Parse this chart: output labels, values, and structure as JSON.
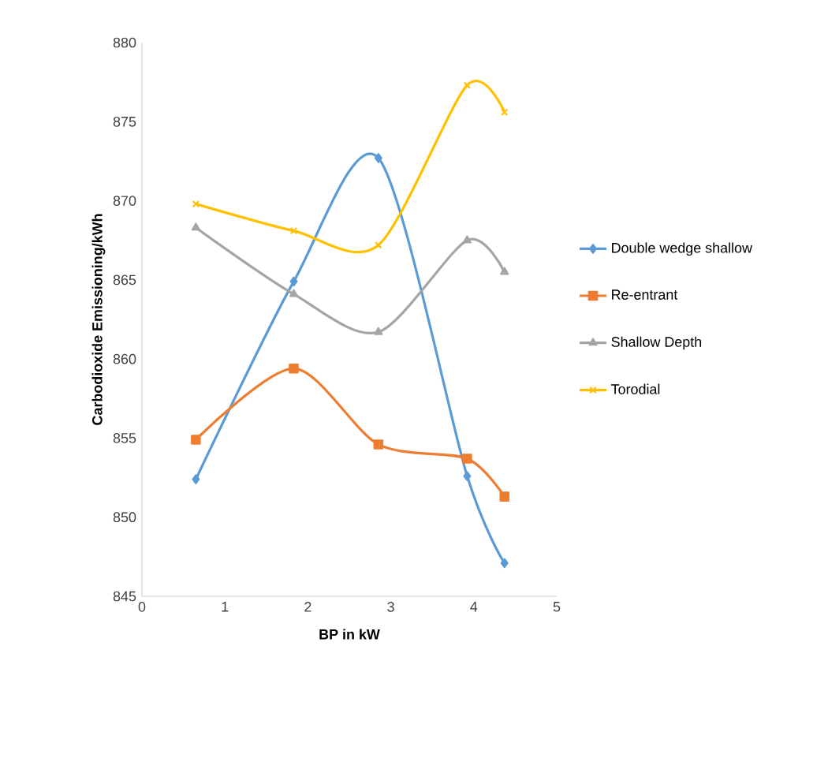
{
  "chart_data": {
    "type": "line",
    "xlabel": "BP in kW",
    "ylabel": "Carbodioxide Emissioning/kWh",
    "xlim": [
      0,
      5
    ],
    "xticks": [
      0,
      1,
      2,
      3,
      4,
      5
    ],
    "ylim": [
      845,
      880
    ],
    "yticks": [
      845,
      850,
      855,
      860,
      865,
      870,
      875,
      880
    ],
    "grid": false,
    "legend": "right",
    "line_style": "solid",
    "series": [
      {
        "name": "Double wedge shallow",
        "color": "#5b9bd5",
        "marker": "diamond",
        "x": [
          0.65,
          1.83,
          2.85,
          3.92,
          4.37
        ],
        "values": [
          852.4,
          864.9,
          872.7,
          852.6,
          847.1
        ]
      },
      {
        "name": "Re-entrant",
        "color": "#ed7d31",
        "marker": "square",
        "x": [
          0.65,
          1.83,
          2.85,
          3.92,
          4.37
        ],
        "values": [
          854.9,
          859.4,
          854.6,
          853.7,
          851.3
        ]
      },
      {
        "name": "Shallow Depth",
        "color": "#a5a5a5",
        "marker": "triangle",
        "x": [
          0.65,
          1.83,
          2.85,
          3.92,
          4.37
        ],
        "values": [
          868.3,
          864.1,
          861.7,
          867.5,
          865.5
        ]
      },
      {
        "name": "Torodial",
        "color": "#ffc000",
        "marker": "cross",
        "x": [
          0.65,
          1.83,
          2.85,
          3.92,
          4.37
        ],
        "values": [
          869.8,
          868.1,
          867.2,
          877.3,
          875.6
        ]
      }
    ]
  }
}
